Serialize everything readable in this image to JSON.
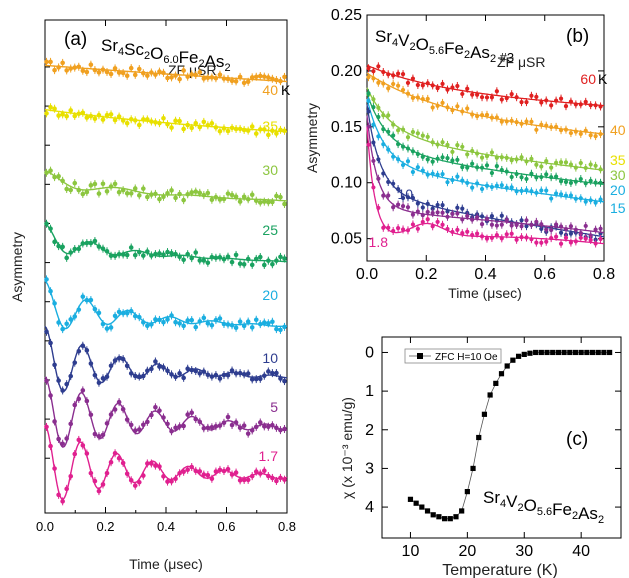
{
  "chart_data": [
    {
      "id": "a",
      "type": "scatter",
      "panel_label": "(a)",
      "compound": {
        "parts": [
          [
            "Sr",
            ""
          ],
          [
            "4",
            "sub"
          ],
          [
            "Sc",
            ""
          ],
          [
            "2",
            "sub"
          ],
          [
            "O",
            ""
          ],
          [
            "6.0",
            "sub"
          ],
          [
            "Fe",
            ""
          ],
          [
            "2",
            "sub"
          ],
          [
            "As",
            ""
          ],
          [
            "2",
            "sub"
          ]
        ]
      },
      "note": "ZF μSR",
      "xlabel": "Time (μsec)",
      "ylabel": "Asymmetry",
      "xlim": [
        0,
        0.8
      ],
      "xticks": [
        "0.0",
        "0.2",
        "0.4",
        "0.6",
        "0.8"
      ],
      "yticks_unlabeled": true,
      "unit_suffix": "K",
      "series": [
        {
          "name": "40",
          "color": "#f0a020",
          "offset": 9.0,
          "amp": 1.2,
          "osc": 0.0,
          "freq": 0,
          "relax": 1.0,
          "tail": 0.8,
          "noise": 0.12
        },
        {
          "name": "35",
          "color": "#e8e000",
          "offset": 7.85,
          "amp": 1.2,
          "osc": 0.0,
          "freq": 0,
          "relax": 2.0,
          "tail": 0.7,
          "noise": 0.12
        },
        {
          "name": "30",
          "color": "#8cc63f",
          "offset": 6.25,
          "amp": 1.25,
          "osc": 0.4,
          "freq": 4.0,
          "relax": 5.0,
          "tail": 0.6,
          "noise": 0.14
        },
        {
          "name": "25",
          "color": "#1aa260",
          "offset": 4.8,
          "amp": 1.4,
          "osc": 0.55,
          "freq": 6.5,
          "relax": 6.0,
          "tail": 0.5,
          "noise": 0.12
        },
        {
          "name": "20",
          "color": "#1aaee0",
          "offset": 3.2,
          "amp": 1.6,
          "osc": 0.75,
          "freq": 7.2,
          "relax": 5.0,
          "tail": 0.45,
          "noise": 0.12
        },
        {
          "name": "10",
          "color": "#2e3d8f",
          "offset": 1.95,
          "amp": 1.7,
          "osc": 0.9,
          "freq": 8.0,
          "relax": 4.5,
          "tail": 0.4,
          "noise": 0.1
        },
        {
          "name": "5",
          "color": "#8a2e8f",
          "offset": 0.65,
          "amp": 1.7,
          "osc": 0.95,
          "freq": 8.2,
          "relax": 3.5,
          "tail": 0.4,
          "noise": 0.1
        },
        {
          "name": "1.7",
          "color": "#e0208f",
          "offset": -0.6,
          "amp": 1.75,
          "osc": 1.0,
          "freq": 8.4,
          "relax": 4.0,
          "tail": 0.4,
          "noise": 0.1
        }
      ]
    },
    {
      "id": "b",
      "type": "scatter",
      "panel_label": "(b)",
      "compound": {
        "parts": [
          [
            "Sr",
            ""
          ],
          [
            "4",
            "sub"
          ],
          [
            "V",
            ""
          ],
          [
            "2",
            "sub"
          ],
          [
            "O",
            ""
          ],
          [
            "5.6",
            "sub"
          ],
          [
            "Fe",
            ""
          ],
          [
            "2",
            "sub"
          ],
          [
            "As",
            ""
          ],
          [
            "2",
            "sub"
          ],
          [
            " #3",
            "small"
          ]
        ]
      },
      "note": "ZF μSR",
      "xlabel": "Time (μsec)",
      "ylabel": "Asymmetry",
      "xlim": [
        0,
        0.8
      ],
      "ylim": [
        0.03,
        0.25
      ],
      "xticks": [
        "0.0",
        "0.2",
        "0.4",
        "0.6",
        "0.8"
      ],
      "yticks": [
        "0.05",
        "0.10",
        "0.15",
        "0.20",
        "0.25"
      ],
      "unit_suffix": "K",
      "series": [
        {
          "name": "60",
          "color": "#e02020",
          "start": 0.205,
          "end": 0.168,
          "fast": 0.0,
          "rate": 0,
          "noise": 0.004
        },
        {
          "name": "40",
          "color": "#f0a020",
          "start": 0.198,
          "end": 0.142,
          "fast": 0.0,
          "rate": 0,
          "noise": 0.004
        },
        {
          "name": "35",
          "color": "#8cc63f",
          "start": 0.185,
          "end": 0.112,
          "fast": 0.03,
          "rate": 12,
          "noise": 0.004
        },
        {
          "name": "30",
          "color": "#1aa260",
          "start": 0.18,
          "end": 0.1,
          "fast": 0.04,
          "rate": 14,
          "noise": 0.004
        },
        {
          "name": "20",
          "color": "#1aaee0",
          "start": 0.175,
          "end": 0.085,
          "fast": 0.05,
          "rate": 16,
          "noise": 0.004
        },
        {
          "name": "15",
          "color": "#2e3d8f",
          "start": 0.17,
          "end": 0.055,
          "fast": 0.07,
          "rate": 22,
          "noise": 0.004
        },
        {
          "name": "10",
          "color": "#8a2e8f",
          "start": 0.16,
          "end": 0.06,
          "fast": 0.08,
          "rate": 28,
          "noise": 0.004
        },
        {
          "name": "1.8",
          "color": "#e0208f",
          "start": 0.15,
          "end": 0.052,
          "fast": 0.1,
          "rate": 35,
          "noise": 0.004,
          "dip": true
        }
      ],
      "label_colors": {
        "60": "#e02020",
        "40": "#f0a020",
        "35": "#e8e000",
        "30": "#8cc63f",
        "20": "#1aaee0",
        "15": "#1aaee0",
        "10": "#2e3d8f",
        "1.8": "#e0208f"
      }
    },
    {
      "id": "c",
      "type": "line",
      "panel_label": "(c)",
      "compound": {
        "parts": [
          [
            "Sr",
            ""
          ],
          [
            "4",
            "sub"
          ],
          [
            "V",
            ""
          ],
          [
            "2",
            "sub"
          ],
          [
            "O",
            ""
          ],
          [
            "5.6",
            "sub"
          ],
          [
            "Fe",
            ""
          ],
          [
            "2",
            "sub"
          ],
          [
            "As",
            ""
          ],
          [
            "2",
            "sub"
          ]
        ]
      },
      "xlabel": "Temperature (K)",
      "ylabel": "χ (x 10⁻³ emu/g)",
      "xlim": [
        5,
        47
      ],
      "ylim": [
        -0.4,
        4.8
      ],
      "y_inverted": true,
      "xticks": [
        10,
        20,
        30,
        40
      ],
      "yticks": [
        0,
        1,
        2,
        3,
        4
      ],
      "legend": "ZFC H=10 Oe",
      "legend_position": "top-left",
      "x": [
        10,
        11,
        12,
        13,
        14,
        15,
        16,
        17,
        18,
        19,
        20,
        21,
        22,
        23,
        24,
        25,
        26,
        27,
        28,
        29,
        30,
        31,
        32,
        33,
        34,
        35,
        36,
        37,
        38,
        39,
        40,
        41,
        42,
        43,
        44,
        45
      ],
      "y": [
        3.8,
        3.9,
        4.0,
        4.1,
        4.2,
        4.25,
        4.3,
        4.3,
        4.25,
        4.1,
        3.6,
        3.0,
        2.2,
        1.6,
        1.1,
        0.8,
        0.55,
        0.35,
        0.2,
        0.1,
        0.05,
        0.02,
        0.0,
        0.0,
        0.0,
        0.0,
        0.0,
        0.0,
        0.0,
        0.0,
        0.0,
        0.0,
        0.0,
        0.0,
        0.0,
        0.0
      ]
    }
  ]
}
